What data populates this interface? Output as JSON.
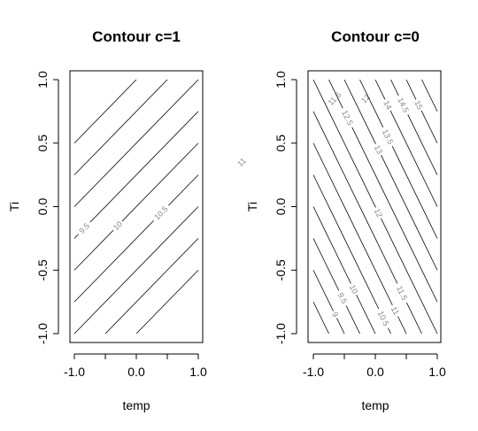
{
  "chart_data": [
    {
      "type": "contour",
      "title": "Contour c=1",
      "xlabel": "temp",
      "ylabel": "Ti",
      "xlim": [
        -1.0,
        1.0
      ],
      "ylim": [
        -1.0,
        1.0
      ],
      "xticks": [
        "-1.0",
        "0.0",
        "1.0"
      ],
      "yticks": [
        "-1.0",
        "-0.5",
        "0.0",
        "0.5",
        "1.0"
      ],
      "function": {
        "intercept": 10,
        "temp_coef": 1,
        "ti_coef": -2
      },
      "levels": [
        8,
        8.5,
        9,
        9.5,
        10,
        10.5,
        11,
        11.5,
        12
      ],
      "contour_labels": [
        {
          "level": 12,
          "text": "12",
          "ti": 0.85
        },
        {
          "level": 11.5,
          "text": "11.5",
          "ti": 0.85
        },
        {
          "level": 11,
          "text": "11",
          "ti": 0.35
        },
        {
          "level": 10.5,
          "text": "10.5",
          "ti": -0.05
        },
        {
          "level": 10,
          "text": "10",
          "ti": -0.15
        },
        {
          "level": 9.5,
          "text": "9.5",
          "ti": -0.17
        },
        {
          "level": 9,
          "text": "9",
          "ti": -0.82
        },
        {
          "level": 8.5,
          "text": "8.5",
          "ti": -0.77
        },
        {
          "level": 8,
          "text": "8",
          "ti": -0.95
        }
      ]
    },
    {
      "type": "contour",
      "title": "Contour c=0",
      "xlabel": "temp",
      "ylabel": "Ti",
      "xlim": [
        -1.0,
        1.0
      ],
      "ylim": [
        -1.0,
        1.0
      ],
      "xticks": [
        "-1.0",
        "0.0",
        "1.0"
      ],
      "yticks": [
        "-1.0",
        "-0.5",
        "0.0",
        "0.5",
        "1.0"
      ],
      "function": {
        "intercept": 12,
        "temp_coef": 2,
        "ti_coef": 2
      },
      "levels": [
        8.5,
        9,
        9.5,
        10,
        10.5,
        11,
        11.5,
        12,
        12.5,
        13,
        13.5,
        14,
        14.5,
        15,
        15.5
      ],
      "contour_labels": [
        {
          "level": 15,
          "text": "15",
          "ti": 0.8
        },
        {
          "level": 14.5,
          "text": "14.5",
          "ti": 0.8
        },
        {
          "level": 14,
          "text": "14",
          "ti": 0.8
        },
        {
          "level": 13.5,
          "text": "13.5",
          "ti": 0.55
        },
        {
          "level": 13,
          "text": "13",
          "ti": 0.45
        },
        {
          "level": 12.5,
          "text": "12.5",
          "ti": 0.7
        },
        {
          "level": 12,
          "text": "12",
          "ti": -0.05
        },
        {
          "level": 11.5,
          "text": "11.5",
          "ti": -0.68
        },
        {
          "level": 11,
          "text": "11",
          "ti": -0.82
        },
        {
          "level": 10.5,
          "text": "10.5",
          "ti": -0.88
        },
        {
          "level": 10,
          "text": "10",
          "ti": -0.65
        },
        {
          "level": 9.5,
          "text": "9.5",
          "ti": -0.72
        },
        {
          "level": 9,
          "text": "9",
          "ti": -0.85
        }
      ]
    }
  ]
}
